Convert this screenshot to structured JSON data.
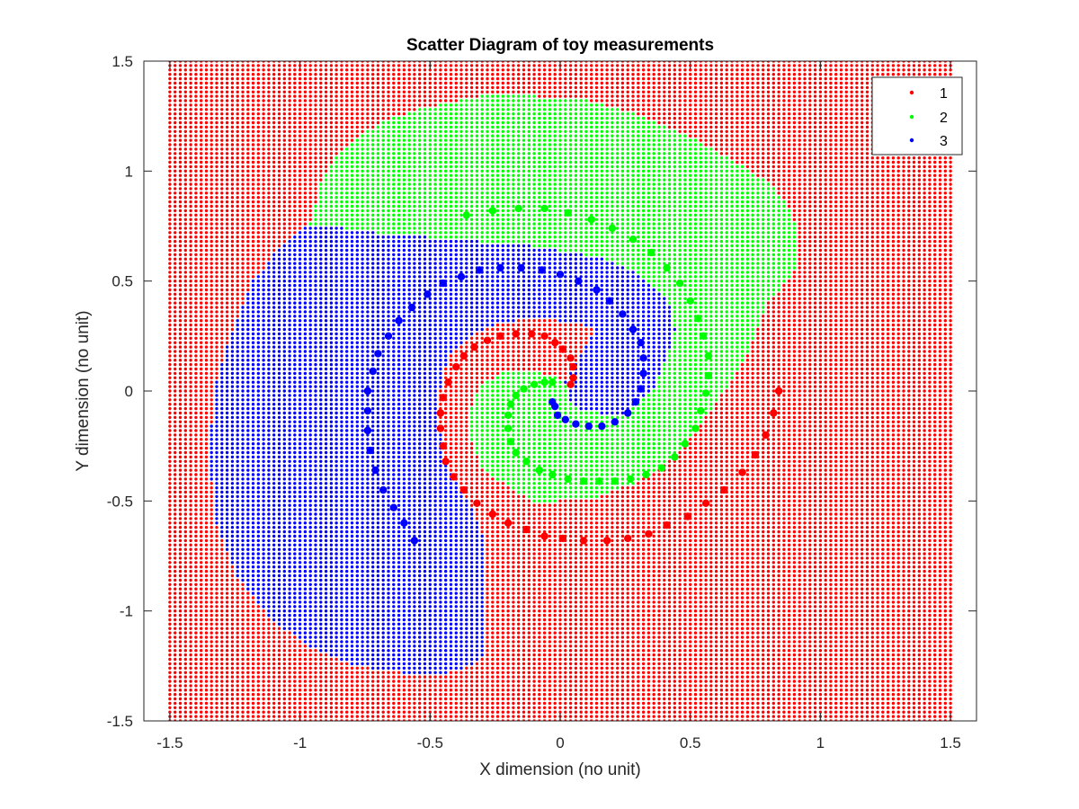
{
  "chart_data": {
    "type": "scatter",
    "title": "Scatter Diagram of toy measurements",
    "xlabel": "X dimension (no unit)",
    "ylabel": "Y dimension (no unit)",
    "xlim": [
      -1.6,
      1.6
    ],
    "ylim": [
      -1.5,
      1.5
    ],
    "xticks": [
      -1.5,
      -1,
      -0.5,
      0,
      0.5,
      1,
      1.5
    ],
    "xtick_labels": [
      "-1.5",
      "-1",
      "-0.5",
      "0",
      "0.5",
      "1",
      "1.5"
    ],
    "yticks": [
      -1.5,
      -1,
      -0.5,
      0,
      0.5,
      1,
      1.5
    ],
    "ytick_labels": [
      "-1.5",
      "-1",
      "-0.5",
      "0",
      "0.5",
      "1",
      "1.5"
    ],
    "grid": false,
    "legend_placement": "top-right",
    "background_grid": {
      "x_range": [
        -1.5,
        1.5
      ],
      "y_range": [
        -1.5,
        1.5
      ],
      "step": 0.02
    },
    "series": [
      {
        "name": "1",
        "color": "#ff0000",
        "region": [],
        "points": [
          [
            0.84,
            0.0
          ],
          [
            0.82,
            -0.1
          ],
          [
            0.79,
            -0.2
          ],
          [
            0.75,
            -0.29
          ],
          [
            0.7,
            -0.37
          ],
          [
            0.63,
            -0.45
          ],
          [
            0.56,
            -0.51
          ],
          [
            0.49,
            -0.57
          ],
          [
            0.41,
            -0.61
          ],
          [
            0.34,
            -0.65
          ],
          [
            0.26,
            -0.67
          ],
          [
            0.18,
            -0.68
          ],
          [
            0.09,
            -0.68
          ],
          [
            0.01,
            -0.67
          ],
          [
            -0.06,
            -0.66
          ],
          [
            -0.13,
            -0.63
          ],
          [
            -0.2,
            -0.6
          ],
          [
            -0.26,
            -0.56
          ],
          [
            -0.32,
            -0.51
          ],
          [
            -0.37,
            -0.45
          ],
          [
            -0.41,
            -0.39
          ],
          [
            -0.44,
            -0.32
          ],
          [
            -0.45,
            -0.25
          ],
          [
            -0.46,
            -0.17
          ],
          [
            -0.46,
            -0.1
          ],
          [
            -0.45,
            -0.03
          ],
          [
            -0.43,
            0.04
          ],
          [
            -0.4,
            0.11
          ],
          [
            -0.37,
            0.16
          ],
          [
            -0.33,
            0.2
          ],
          [
            -0.28,
            0.23
          ],
          [
            -0.23,
            0.25
          ],
          [
            -0.17,
            0.26
          ],
          [
            -0.11,
            0.26
          ],
          [
            -0.06,
            0.25
          ],
          [
            -0.02,
            0.22
          ],
          [
            0.01,
            0.19
          ],
          [
            0.04,
            0.15
          ],
          [
            0.05,
            0.11
          ],
          [
            0.05,
            0.06
          ],
          [
            0.04,
            0.03
          ]
        ]
      },
      {
        "name": "2",
        "color": "#00ff00",
        "region": [
          [
            -0.96,
            0.76
          ],
          [
            -0.95,
            0.8
          ],
          [
            -0.92,
            0.95
          ],
          [
            -0.87,
            1.06
          ],
          [
            -0.79,
            1.15
          ],
          [
            -0.67,
            1.23
          ],
          [
            -0.52,
            1.29
          ],
          [
            -0.3,
            1.34
          ],
          [
            -0.1,
            1.34
          ],
          [
            0.1,
            1.32
          ],
          [
            0.3,
            1.26
          ],
          [
            0.5,
            1.16
          ],
          [
            0.66,
            1.05
          ],
          [
            0.8,
            0.95
          ],
          [
            0.89,
            0.82
          ],
          [
            0.92,
            0.7
          ],
          [
            0.9,
            0.55
          ],
          [
            0.84,
            0.46
          ],
          [
            0.8,
            0.4
          ],
          [
            0.76,
            0.28
          ],
          [
            0.71,
            0.15
          ],
          [
            0.63,
            0.0
          ],
          [
            0.55,
            -0.13
          ],
          [
            0.47,
            -0.25
          ],
          [
            0.39,
            -0.35
          ],
          [
            0.28,
            -0.42
          ],
          [
            0.15,
            -0.48
          ],
          [
            0.0,
            -0.5
          ],
          [
            -0.1,
            -0.5
          ],
          [
            -0.18,
            -0.45
          ],
          [
            -0.3,
            -0.35
          ],
          [
            -0.35,
            -0.2
          ],
          [
            -0.34,
            -0.06
          ],
          [
            -0.31,
            0.02
          ],
          [
            -0.23,
            0.08
          ],
          [
            -0.13,
            0.1
          ],
          [
            -0.03,
            0.07
          ],
          [
            0.02,
            0.03
          ],
          [
            0.03,
            -0.05
          ],
          [
            0.06,
            -0.08
          ],
          [
            0.15,
            -0.1
          ],
          [
            0.24,
            -0.1
          ],
          [
            0.3,
            -0.05
          ],
          [
            0.37,
            0.03
          ],
          [
            0.42,
            0.2
          ],
          [
            0.44,
            0.28
          ],
          [
            0.43,
            0.37
          ],
          [
            0.39,
            0.45
          ],
          [
            0.32,
            0.52
          ],
          [
            0.2,
            0.59
          ],
          [
            0.05,
            0.63
          ],
          [
            -0.1,
            0.66
          ],
          [
            -0.3,
            0.68
          ],
          [
            -0.5,
            0.7
          ],
          [
            -0.7,
            0.72
          ],
          [
            -0.96,
            0.76
          ]
        ],
        "points": [
          [
            -0.36,
            0.8
          ],
          [
            -0.26,
            0.82
          ],
          [
            -0.16,
            0.83
          ],
          [
            -0.06,
            0.83
          ],
          [
            0.03,
            0.81
          ],
          [
            0.12,
            0.78
          ],
          [
            0.2,
            0.74
          ],
          [
            0.28,
            0.69
          ],
          [
            0.35,
            0.63
          ],
          [
            0.41,
            0.56
          ],
          [
            0.46,
            0.49
          ],
          [
            0.5,
            0.41
          ],
          [
            0.53,
            0.33
          ],
          [
            0.55,
            0.25
          ],
          [
            0.57,
            0.16
          ],
          [
            0.57,
            0.07
          ],
          [
            0.56,
            -0.01
          ],
          [
            0.54,
            -0.09
          ],
          [
            0.52,
            -0.17
          ],
          [
            0.48,
            -0.24
          ],
          [
            0.44,
            -0.3
          ],
          [
            0.39,
            -0.35
          ],
          [
            0.33,
            -0.38
          ],
          [
            0.27,
            -0.4
          ],
          [
            0.21,
            -0.41
          ],
          [
            0.15,
            -0.41
          ],
          [
            0.09,
            -0.41
          ],
          [
            0.03,
            -0.4
          ],
          [
            -0.03,
            -0.38
          ],
          [
            -0.08,
            -0.36
          ],
          [
            -0.13,
            -0.32
          ],
          [
            -0.17,
            -0.28
          ],
          [
            -0.19,
            -0.23
          ],
          [
            -0.2,
            -0.17
          ],
          [
            -0.2,
            -0.11
          ],
          [
            -0.19,
            -0.06
          ],
          [
            -0.17,
            -0.02
          ],
          [
            -0.14,
            0.01
          ],
          [
            -0.1,
            0.03
          ],
          [
            -0.06,
            0.04
          ],
          [
            -0.03,
            0.04
          ]
        ]
      },
      {
        "name": "3",
        "color": "#0000ff",
        "region": [
          [
            -0.96,
            0.76
          ],
          [
            -0.7,
            0.72
          ],
          [
            -0.5,
            0.7
          ],
          [
            -0.3,
            0.68
          ],
          [
            -0.1,
            0.66
          ],
          [
            0.05,
            0.63
          ],
          [
            0.2,
            0.59
          ],
          [
            0.32,
            0.52
          ],
          [
            0.39,
            0.45
          ],
          [
            0.43,
            0.37
          ],
          [
            0.44,
            0.28
          ],
          [
            0.42,
            0.2
          ],
          [
            0.37,
            0.03
          ],
          [
            0.3,
            -0.05
          ],
          [
            0.24,
            -0.1
          ],
          [
            0.15,
            -0.1
          ],
          [
            0.06,
            -0.08
          ],
          [
            0.03,
            -0.05
          ],
          [
            0.02,
            0.03
          ],
          [
            -0.03,
            0.07
          ],
          [
            -0.13,
            0.1
          ],
          [
            -0.23,
            0.08
          ],
          [
            -0.31,
            0.02
          ],
          [
            -0.34,
            -0.06
          ],
          [
            -0.35,
            -0.2
          ],
          [
            -0.3,
            -0.35
          ],
          [
            -0.18,
            -0.45
          ],
          [
            -0.1,
            -0.5
          ],
          [
            -0.05,
            -0.5
          ],
          [
            -0.05,
            -0.2
          ],
          [
            -0.03,
            -0.05
          ],
          [
            0.03,
            0.08
          ],
          [
            0.1,
            0.2
          ],
          [
            0.15,
            0.3
          ],
          [
            0.1,
            0.3
          ],
          [
            0.0,
            0.32
          ],
          [
            -0.12,
            0.33
          ],
          [
            -0.25,
            0.3
          ],
          [
            -0.35,
            0.25
          ],
          [
            -0.43,
            0.15
          ],
          [
            -0.46,
            0.0
          ],
          [
            -0.46,
            -0.15
          ],
          [
            -0.45,
            -0.3
          ],
          [
            -0.4,
            -0.4
          ],
          [
            -0.33,
            -0.55
          ],
          [
            -0.3,
            -0.65
          ],
          [
            -0.3,
            -0.8
          ],
          [
            -0.3,
            -1.0
          ],
          [
            -0.3,
            -1.1
          ],
          [
            -0.3,
            -1.2
          ],
          [
            -0.35,
            -1.25
          ],
          [
            -0.43,
            -1.28
          ],
          [
            -0.6,
            -1.28
          ],
          [
            -0.8,
            -1.25
          ],
          [
            -0.95,
            -1.17
          ],
          [
            -1.1,
            -1.05
          ],
          [
            -1.24,
            -0.85
          ],
          [
            -1.32,
            -0.6
          ],
          [
            -1.35,
            -0.3
          ],
          [
            -1.33,
            0.0
          ],
          [
            -1.27,
            0.25
          ],
          [
            -1.18,
            0.5
          ],
          [
            -1.08,
            0.65
          ],
          [
            -0.96,
            0.76
          ]
        ],
        "points": [
          [
            -0.56,
            -0.68
          ],
          [
            -0.6,
            -0.6
          ],
          [
            -0.64,
            -0.53
          ],
          [
            -0.68,
            -0.45
          ],
          [
            -0.71,
            -0.36
          ],
          [
            -0.73,
            -0.27
          ],
          [
            -0.74,
            -0.18
          ],
          [
            -0.74,
            -0.09
          ],
          [
            -0.74,
            0.0
          ],
          [
            -0.72,
            0.09
          ],
          [
            -0.7,
            0.17
          ],
          [
            -0.66,
            0.25
          ],
          [
            -0.62,
            0.32
          ],
          [
            -0.57,
            0.38
          ],
          [
            -0.51,
            0.44
          ],
          [
            -0.45,
            0.49
          ],
          [
            -0.38,
            0.52
          ],
          [
            -0.31,
            0.55
          ],
          [
            -0.23,
            0.56
          ],
          [
            -0.15,
            0.56
          ],
          [
            -0.07,
            0.55
          ],
          [
            0.0,
            0.53
          ],
          [
            0.07,
            0.5
          ],
          [
            0.14,
            0.46
          ],
          [
            0.19,
            0.41
          ],
          [
            0.24,
            0.35
          ],
          [
            0.28,
            0.28
          ],
          [
            0.31,
            0.22
          ],
          [
            0.32,
            0.15
          ],
          [
            0.32,
            0.08
          ],
          [
            0.31,
            0.01
          ],
          [
            0.29,
            -0.05
          ],
          [
            0.26,
            -0.1
          ],
          [
            0.21,
            -0.14
          ],
          [
            0.16,
            -0.16
          ],
          [
            0.11,
            -0.16
          ],
          [
            0.06,
            -0.15
          ],
          [
            0.02,
            -0.13
          ],
          [
            -0.01,
            -0.11
          ],
          [
            -0.02,
            -0.07
          ],
          [
            -0.03,
            -0.05
          ]
        ]
      }
    ]
  }
}
